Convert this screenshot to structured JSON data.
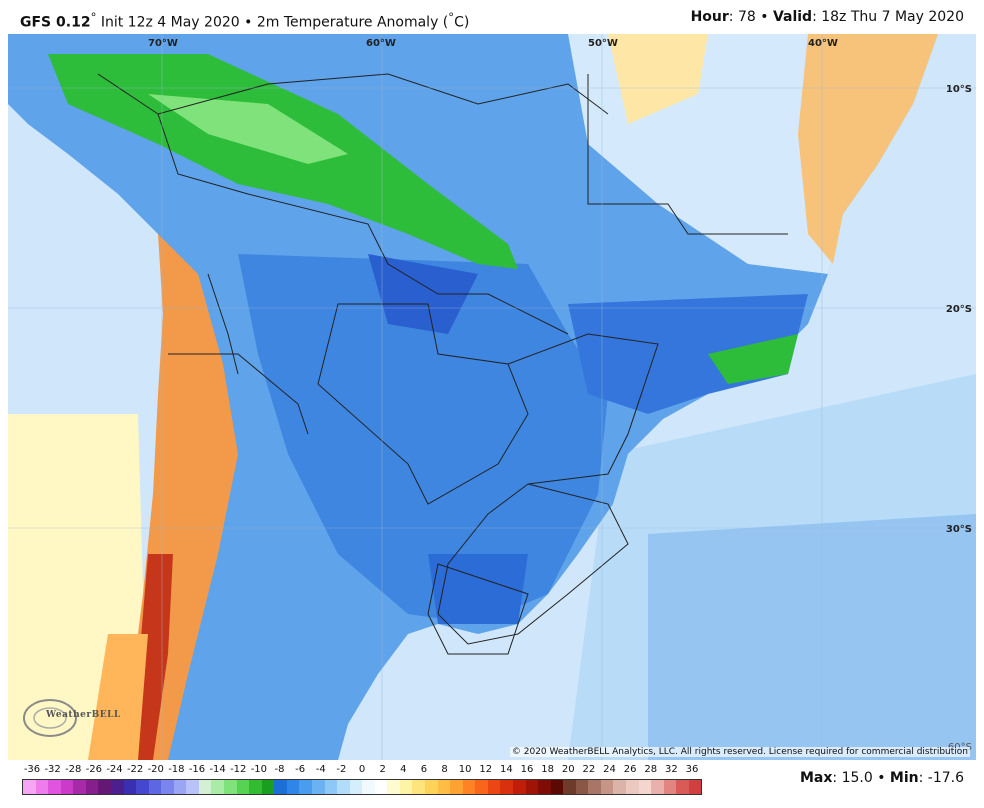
{
  "header": {
    "model": "GFS 0.12",
    "deg": "°",
    "init": " Init 12z 4 May 2020 • 2m Temperature Anomaly (",
    "unit_deg": "°",
    "unit_c": "C)",
    "hour_label": "Hour",
    "hour_value": ": 78 • ",
    "valid_label": "Valid",
    "valid_value": ": 18z Thu 7 May 2020"
  },
  "map": {
    "lon_labels": [
      "70°W",
      "60°W",
      "50°W",
      "40°W"
    ],
    "lat_labels": [
      "10°S",
      "20°S",
      "30°S"
    ],
    "corner_label": "60°S",
    "copyright": "© 2020 WeatherBELL Analytics, LLC. All rights reserved. License required for commercial distribution",
    "logo_text": "WeatherBELL"
  },
  "legend": {
    "ticks": [
      "-36",
      "-32",
      "-28",
      "-26",
      "-24",
      "-22",
      "-20",
      "-18",
      "-16",
      "-14",
      "-12",
      "-10",
      "-8",
      "-6",
      "-4",
      "-2",
      "0",
      "2",
      "4",
      "6",
      "8",
      "10",
      "12",
      "14",
      "16",
      "18",
      "20",
      "22",
      "24",
      "26",
      "28",
      "32",
      "36"
    ],
    "colors": [
      "#f7a6f5",
      "#ef7cec",
      "#e055df",
      "#c93bc8",
      "#a72aa8",
      "#861f8c",
      "#661775",
      "#4b1f8e",
      "#3a2fb0",
      "#4547cf",
      "#5d66e3",
      "#7a86ee",
      "#9aa5f3",
      "#b9c3f7",
      "#d4f0d4",
      "#a9eca4",
      "#7fe27a",
      "#58d253",
      "#33bc32",
      "#199e1f",
      "#1d6fd8",
      "#2f86e8",
      "#4a9cef",
      "#6bb2f3",
      "#8ec8f7",
      "#b2ddfa",
      "#d5eefc",
      "#f1fafe",
      "#ffffff",
      "#fffbd1",
      "#fff3a8",
      "#ffe47e",
      "#ffd25a",
      "#ffbd45",
      "#ffa234",
      "#ff8325",
      "#f9651a",
      "#ec4613",
      "#d9300e",
      "#c01e0a",
      "#a01407",
      "#7e0d05",
      "#5c0803",
      "#6e3a2a",
      "#8a5646",
      "#a87566",
      "#c59688",
      "#dcb3a8",
      "#ecc9c0",
      "#f4d6cf",
      "#eab0ab",
      "#e2847f",
      "#d95b58",
      "#d04040"
    ],
    "max_label": "Max",
    "max_value": ": 15.0 • ",
    "min_label": "Min",
    "min_value": ": -17.6"
  },
  "colors": {
    "ocean": "#cfe6fb",
    "land_cool": "#4a90e2",
    "land_cold": "#2f6fd8",
    "green_band": "#2ebd3a",
    "warm": "#f2a24f",
    "hot": "#c6361a",
    "neutral": "#f6fbfe",
    "borders": "#222222"
  }
}
